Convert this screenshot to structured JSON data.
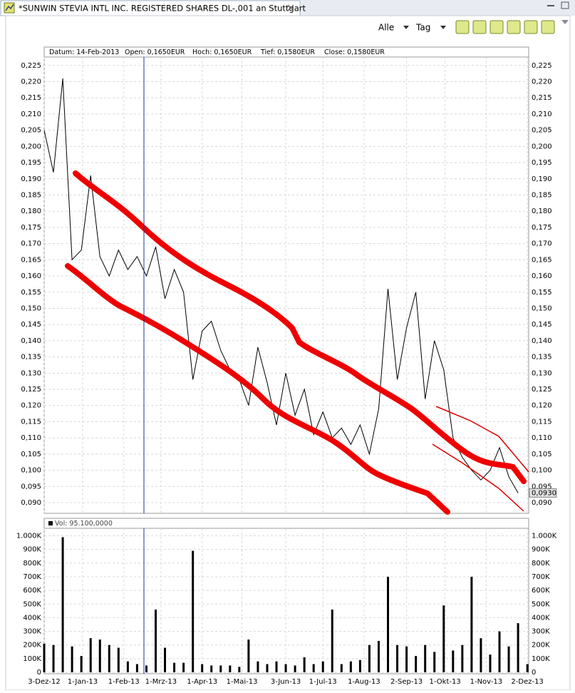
{
  "tab": {
    "title": "*SUNWIN STEVIA INTL INC. REGISTERED SHARES DL-,001 an Stuttgart"
  },
  "toolbar": {
    "range": "Alle",
    "interval": "Tag"
  },
  "info_bar": {
    "fields": [
      "Datum: 14-Feb-2013",
      "Open: 0,1650EUR",
      "Hoch: 0,1650EUR",
      "Tief: 0,1580EUR",
      "Close: 0,1580EUR"
    ]
  },
  "chart_data": [
    {
      "type": "line",
      "x": [
        "2012-12-03",
        "2012-12-10",
        "2012-12-17",
        "2012-12-24",
        "2012-12-31",
        "2013-01-07",
        "2013-01-14",
        "2013-01-21",
        "2013-01-28",
        "2013-02-04",
        "2013-02-11",
        "2013-02-18",
        "2013-02-25",
        "2013-03-04",
        "2013-03-11",
        "2013-03-18",
        "2013-03-25",
        "2013-04-01",
        "2013-04-08",
        "2013-04-15",
        "2013-04-22",
        "2013-04-29",
        "2013-05-06",
        "2013-05-13",
        "2013-05-20",
        "2013-05-27",
        "2013-06-03",
        "2013-06-10",
        "2013-06-17",
        "2013-06-24",
        "2013-07-01",
        "2013-07-08",
        "2013-07-15",
        "2013-07-22",
        "2013-07-29",
        "2013-08-05",
        "2013-08-12",
        "2013-08-19",
        "2013-08-26",
        "2013-09-02",
        "2013-09-09",
        "2013-09-16",
        "2013-09-23",
        "2013-09-30",
        "2013-10-07",
        "2013-10-14",
        "2013-10-21",
        "2013-10-28",
        "2013-11-04",
        "2013-11-11",
        "2013-11-18",
        "2013-11-25",
        "2013-12-02"
      ],
      "series": [
        {
          "color": "#000000",
          "values": [
            0.205,
            0.192,
            0.221,
            0.165,
            0.168,
            0.191,
            0.166,
            0.16,
            0.168,
            0.162,
            0.166,
            0.16,
            0.169,
            0.153,
            0.162,
            0.155,
            0.128,
            0.143,
            0.146,
            0.137,
            0.131,
            0.128,
            0.12,
            0.138,
            0.127,
            0.114,
            0.13,
            0.117,
            0.125,
            0.111,
            0.118,
            0.11,
            0.113,
            0.108,
            0.114,
            0.105,
            0.119,
            0.156,
            0.128,
            0.144,
            0.155,
            0.122,
            0.14,
            0.131,
            0.11,
            0.104,
            0.1,
            0.097,
            0.1,
            0.107,
            0.098,
            0.093,
            null
          ]
        }
      ],
      "last_value_label": "0,0930",
      "xlim": [
        "2012-12-03",
        "2013-12-03"
      ],
      "ylim": [
        0.0867,
        0.2276
      ],
      "yticks": [
        {
          "value": 0.09,
          "label": "0,090"
        },
        {
          "value": 0.095,
          "label": "0,095"
        },
        {
          "value": 0.1,
          "label": "0,100"
        },
        {
          "value": 0.105,
          "label": "0,105"
        },
        {
          "value": 0.11,
          "label": "0,110"
        },
        {
          "value": 0.115,
          "label": "0,115"
        },
        {
          "value": 0.12,
          "label": "0,120"
        },
        {
          "value": 0.125,
          "label": "0,125"
        },
        {
          "value": 0.13,
          "label": "0,130"
        },
        {
          "value": 0.135,
          "label": "0,135"
        },
        {
          "value": 0.14,
          "label": "0,140"
        },
        {
          "value": 0.145,
          "label": "0,145"
        },
        {
          "value": 0.15,
          "label": "0,150"
        },
        {
          "value": 0.155,
          "label": "0,155"
        },
        {
          "value": 0.16,
          "label": "0,160"
        },
        {
          "value": 0.165,
          "label": "0,165"
        },
        {
          "value": 0.17,
          "label": "0,170"
        },
        {
          "value": 0.175,
          "label": "0,175"
        },
        {
          "value": 0.18,
          "label": "0,180"
        },
        {
          "value": 0.185,
          "label": "0,185"
        },
        {
          "value": 0.19,
          "label": "0,190"
        },
        {
          "value": 0.195,
          "label": "0,195"
        },
        {
          "value": 0.2,
          "label": "0,200"
        },
        {
          "value": 0.205,
          "label": "0,205"
        },
        {
          "value": 0.21,
          "label": "0,210"
        },
        {
          "value": 0.215,
          "label": "0,215"
        },
        {
          "value": 0.22,
          "label": "0,220"
        },
        {
          "value": 0.225,
          "label": "0,225"
        }
      ],
      "grid": true
    },
    {
      "type": "bar",
      "legend": "Vol: 95.100,0000",
      "color": "#000000",
      "x": [
        "2012-12-03",
        "2012-12-10",
        "2012-12-17",
        "2012-12-24",
        "2012-12-31",
        "2013-01-07",
        "2013-01-14",
        "2013-01-21",
        "2013-01-28",
        "2013-02-04",
        "2013-02-11",
        "2013-02-18",
        "2013-02-25",
        "2013-03-04",
        "2013-03-11",
        "2013-03-18",
        "2013-03-25",
        "2013-04-01",
        "2013-04-08",
        "2013-04-15",
        "2013-04-22",
        "2013-04-29",
        "2013-05-06",
        "2013-05-13",
        "2013-05-20",
        "2013-05-27",
        "2013-06-03",
        "2013-06-10",
        "2013-06-17",
        "2013-06-24",
        "2013-07-01",
        "2013-07-08",
        "2013-07-15",
        "2013-07-22",
        "2013-07-29",
        "2013-08-05",
        "2013-08-12",
        "2013-08-19",
        "2013-08-26",
        "2013-09-02",
        "2013-09-09",
        "2013-09-16",
        "2013-09-23",
        "2013-09-30",
        "2013-10-07",
        "2013-10-14",
        "2013-10-21",
        "2013-10-28",
        "2013-11-04",
        "2013-11-11",
        "2013-11-18",
        "2013-11-25",
        "2013-12-02"
      ],
      "values": [
        210000,
        200000,
        990000,
        190000,
        120000,
        250000,
        240000,
        200000,
        180000,
        80000,
        60000,
        50000,
        460000,
        180000,
        70000,
        70000,
        890000,
        60000,
        50000,
        50000,
        50000,
        40000,
        240000,
        80000,
        60000,
        80000,
        60000,
        50000,
        110000,
        60000,
        80000,
        460000,
        60000,
        80000,
        90000,
        200000,
        230000,
        700000,
        200000,
        190000,
        120000,
        200000,
        150000,
        490000,
        160000,
        200000,
        700000,
        250000,
        130000,
        300000,
        190000,
        360000,
        60000
      ],
      "xlim": [
        "2012-12-03",
        "2013-12-03"
      ],
      "xticks": [
        {
          "value": "2012-12-03",
          "label": "3-Dez-12"
        },
        {
          "value": "2013-01-01",
          "label": "1-Jan-13"
        },
        {
          "value": "2013-02-01",
          "label": "1-Feb-13"
        },
        {
          "value": "2013-03-01",
          "label": "1-Mrz-13"
        },
        {
          "value": "2013-04-01",
          "label": "1-Apr-13"
        },
        {
          "value": "2013-05-01",
          "label": "1-Mai-13"
        },
        {
          "value": "2013-06-03",
          "label": "3-Jun-13"
        },
        {
          "value": "2013-07-01",
          "label": "1-Jul-13"
        },
        {
          "value": "2013-08-01",
          "label": "1-Aug-13"
        },
        {
          "value": "2013-09-02",
          "label": "2-Sep-13"
        },
        {
          "value": "2013-10-01",
          "label": "1-Okt-13"
        },
        {
          "value": "2013-11-01",
          "label": "1-Nov-13"
        },
        {
          "value": "2013-12-02",
          "label": "2-Dez-13"
        }
      ],
      "ylim": [
        0,
        1055000
      ],
      "yticks": [
        0,
        {
          "value": 100000,
          "label": "100K"
        },
        {
          "value": 200000,
          "label": "200K"
        },
        {
          "value": 300000,
          "label": "300K"
        },
        {
          "value": 400000,
          "label": "400K"
        },
        {
          "value": 500000,
          "label": "500K"
        },
        {
          "value": 600000,
          "label": "600K"
        },
        {
          "value": 700000,
          "label": "700K"
        },
        {
          "value": 800000,
          "label": "800K"
        },
        {
          "value": 900000,
          "label": "900K"
        },
        {
          "value": 1000000,
          "label": "1.000K"
        }
      ],
      "grid": true
    }
  ]
}
